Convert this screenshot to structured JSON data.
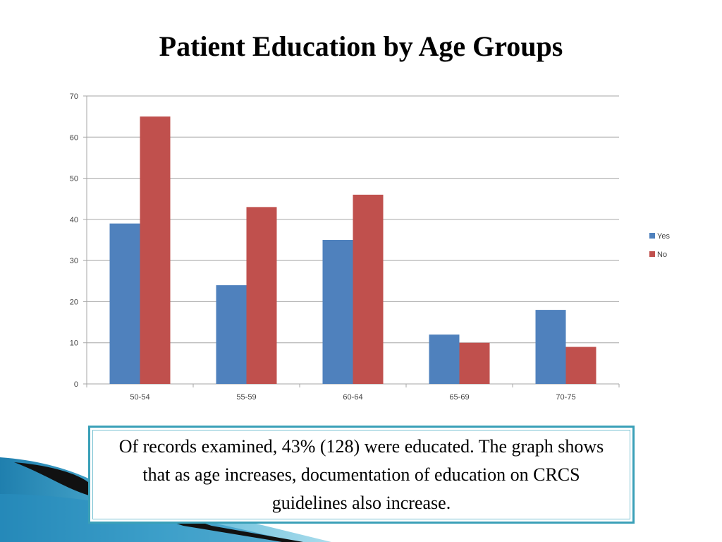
{
  "slide": {
    "title": "Patient Education by Age Groups",
    "note": "Of records examined, 43% (128) were educated. The graph shows that as age increases, documentation of education on CRCS guidelines also increase."
  },
  "chart_data": {
    "type": "bar",
    "title": "",
    "xlabel": "",
    "ylabel": "",
    "categories": [
      "50-54",
      "55-59",
      "60-64",
      "65-69",
      "70-75"
    ],
    "series": [
      {
        "name": "Yes",
        "values": [
          39,
          24,
          35,
          12,
          18
        ],
        "color": "#4f81bd"
      },
      {
        "name": "No",
        "values": [
          65,
          43,
          46,
          10,
          9
        ],
        "color": "#c0504d"
      }
    ],
    "ylim": [
      0,
      70
    ],
    "yticks": [
      0,
      10,
      20,
      30,
      40,
      50,
      60,
      70
    ],
    "grid": true,
    "legend": "right"
  },
  "colors": {
    "accent": "#3aa0b8",
    "gridline": "#a6a6a6"
  }
}
